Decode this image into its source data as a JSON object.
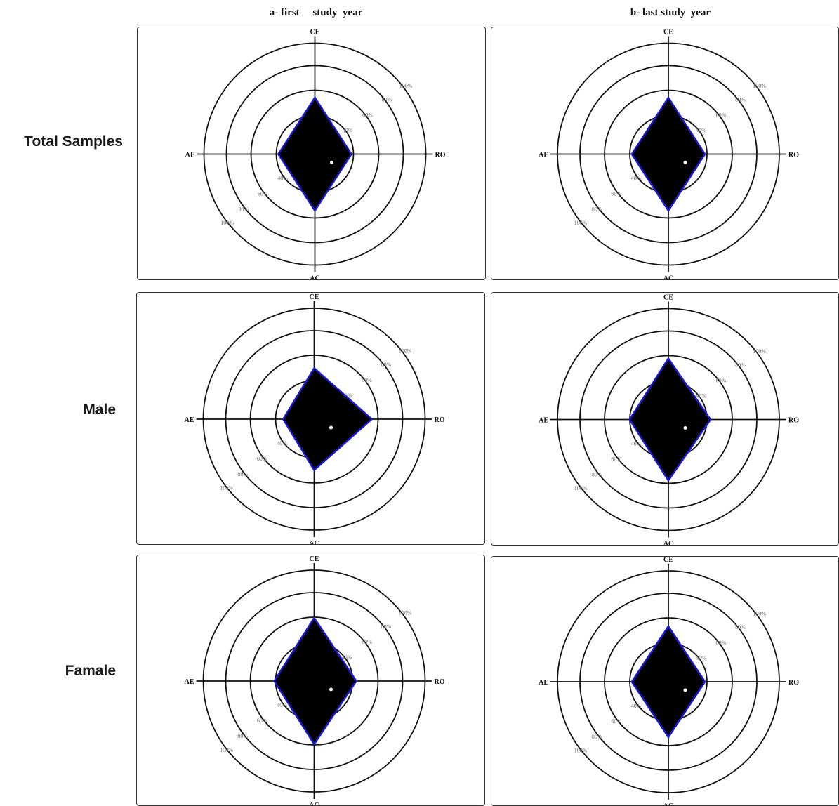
{
  "columns": [
    "a- first     study  year",
    "b- last study  year"
  ],
  "rows": [
    "Total Samples",
    "Male",
    "Famale"
  ],
  "chart_data": {
    "type": "radar",
    "axes": [
      "CE",
      "RO",
      "AC",
      "AE"
    ],
    "ring_levels": [
      "40%",
      "60%",
      "80%",
      "100%"
    ],
    "ring_values": [
      40,
      60,
      80,
      100
    ],
    "colors": {
      "fill": "#000000",
      "outline": "#1a1adb",
      "grid": "#111111"
    },
    "panels": [
      {
        "row": "Total Samples",
        "column": "a- first     study  year",
        "values": {
          "CE": 51,
          "RO": 33,
          "AC": 51,
          "AE": 33
        }
      },
      {
        "row": "Total Samples",
        "column": "b- last study  year",
        "values": {
          "CE": 51,
          "RO": 33,
          "AC": 51,
          "AE": 33
        }
      },
      {
        "row": "Male",
        "column": "a- first     study  year",
        "values": {
          "CE": 46,
          "RO": 52,
          "AC": 46,
          "AE": 28
        }
      },
      {
        "row": "Male",
        "column": "b- last study  year",
        "values": {
          "CE": 55,
          "RO": 38,
          "AC": 55,
          "AE": 35
        }
      },
      {
        "row": "Famale",
        "column": "a- first     study  year",
        "values": {
          "CE": 57,
          "RO": 38,
          "AC": 57,
          "AE": 36
        }
      },
      {
        "row": "Famale",
        "column": "b- last study  year",
        "values": {
          "CE": 50,
          "RO": 33,
          "AC": 50,
          "AE": 33
        }
      }
    ]
  }
}
